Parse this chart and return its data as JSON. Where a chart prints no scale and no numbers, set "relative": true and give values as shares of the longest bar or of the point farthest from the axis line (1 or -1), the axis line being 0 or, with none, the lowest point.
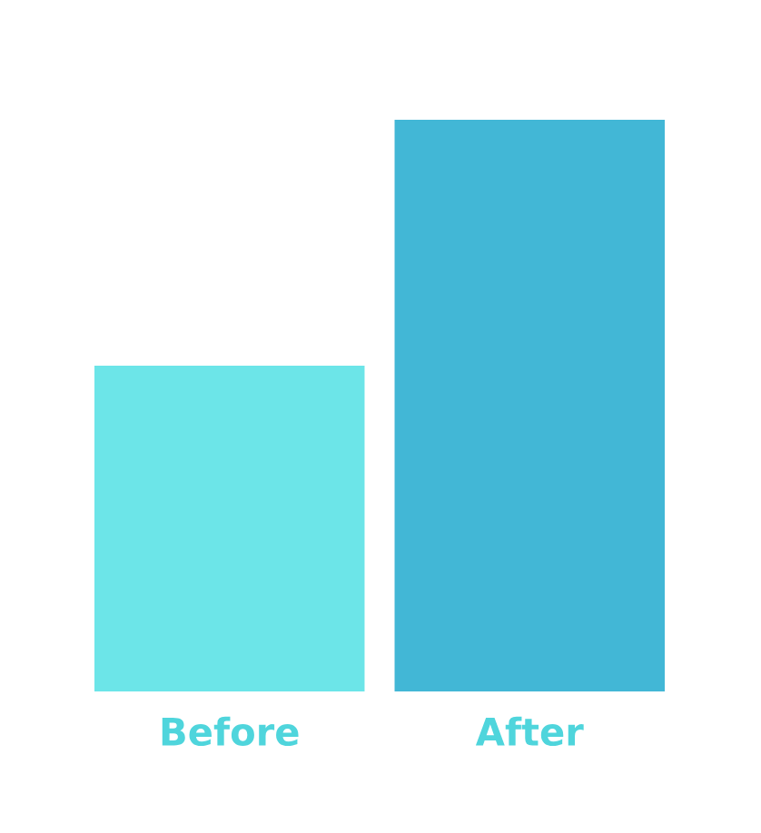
{
  "chart_data": {
    "type": "bar",
    "relative": true,
    "categories": [
      "Before",
      "After"
    ],
    "values": [
      0.57,
      1
    ],
    "colors": [
      "#6ce5e8",
      "#42b7d6"
    ],
    "grid": false,
    "legend": false
  }
}
